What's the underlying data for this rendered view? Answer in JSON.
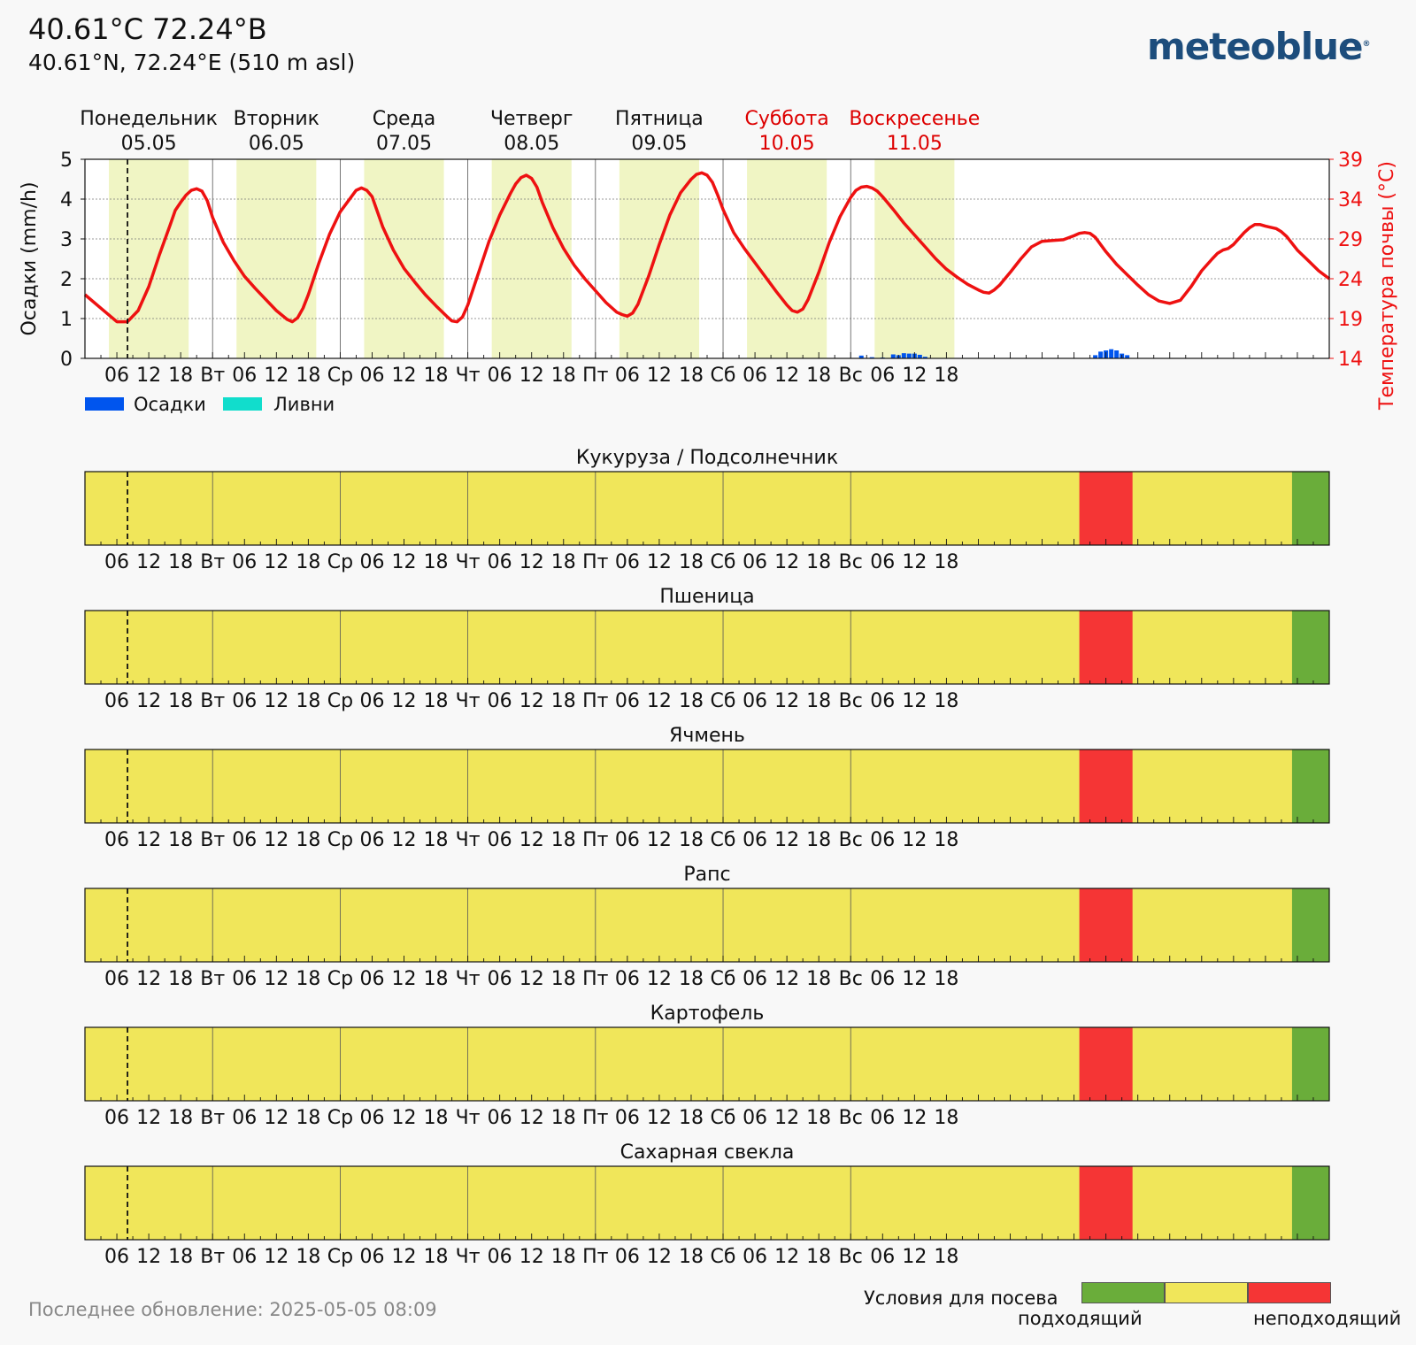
{
  "header": {
    "title": "40.61°C 72.24°В",
    "subtitle": "40.61°N, 72.24°E (510 m asl)",
    "logo": "meteoblue",
    "logo_mark": "®"
  },
  "days": [
    {
      "name": "Понедельник",
      "date": "05.05",
      "weekend": false
    },
    {
      "name": "Вторник",
      "date": "06.05",
      "weekend": false
    },
    {
      "name": "Среда",
      "date": "07.05",
      "weekend": false
    },
    {
      "name": "Четверг",
      "date": "08.05",
      "weekend": false
    },
    {
      "name": "Пятница",
      "date": "09.05",
      "weekend": false
    },
    {
      "name": "Суббота",
      "date": "10.05",
      "weekend": true
    },
    {
      "name": "Воскресенье",
      "date": "11.05",
      "weekend": true
    }
  ],
  "hour_ticks": [
    "06",
    "12",
    "18"
  ],
  "day_abbr": [
    "Вт",
    "Ср",
    "Чт",
    "Пт",
    "Сб",
    "Вс"
  ],
  "legend": {
    "precip": "Осадки",
    "showers": "Ливни"
  },
  "chart_data": {
    "type": "line",
    "x_unit": "hours from 05.05 00:00",
    "precip_axis": {
      "label": "Осадки (mm/h)",
      "ticks": [
        0,
        1,
        2,
        3,
        4,
        5
      ],
      "range": [
        0,
        5
      ]
    },
    "temp_axis": {
      "label": "Температура почвы (°C)",
      "ticks": [
        14,
        19,
        24,
        29,
        34,
        39
      ],
      "range": [
        14,
        39
      ]
    },
    "grid": true,
    "now_hour": 8,
    "soil_temperature": [
      [
        0,
        22
      ],
      [
        3,
        20.3
      ],
      [
        6,
        18.6
      ],
      [
        8,
        18.6
      ],
      [
        10,
        20
      ],
      [
        12,
        23
      ],
      [
        14,
        27
      ],
      [
        16,
        30.7
      ],
      [
        17,
        32.6
      ],
      [
        18,
        33.6
      ],
      [
        19,
        34.5
      ],
      [
        20,
        35.1
      ],
      [
        21,
        35.3
      ],
      [
        22,
        35
      ],
      [
        23,
        33.8
      ],
      [
        24,
        31.7
      ],
      [
        26,
        28.6
      ],
      [
        28,
        26.3
      ],
      [
        30,
        24.3
      ],
      [
        32,
        22.8
      ],
      [
        34,
        21.4
      ],
      [
        36,
        20
      ],
      [
        38,
        18.9
      ],
      [
        39,
        18.6
      ],
      [
        40,
        19.1
      ],
      [
        41,
        20.3
      ],
      [
        42,
        22
      ],
      [
        44,
        26
      ],
      [
        46,
        29.6
      ],
      [
        48,
        32.4
      ],
      [
        50,
        34.2
      ],
      [
        51,
        35.1
      ],
      [
        52,
        35.4
      ],
      [
        53,
        35.1
      ],
      [
        54,
        34.3
      ],
      [
        56,
        30.5
      ],
      [
        58,
        27.6
      ],
      [
        60,
        25.3
      ],
      [
        62,
        23.6
      ],
      [
        64,
        22
      ],
      [
        66,
        20.6
      ],
      [
        68,
        19.3
      ],
      [
        69,
        18.7
      ],
      [
        70,
        18.6
      ],
      [
        71,
        19.2
      ],
      [
        72,
        20.7
      ],
      [
        74,
        24.7
      ],
      [
        76,
        28.7
      ],
      [
        78,
        32
      ],
      [
        80,
        34.7
      ],
      [
        81,
        35.9
      ],
      [
        82,
        36.7
      ],
      [
        83,
        37
      ],
      [
        84,
        36.6
      ],
      [
        85,
        35.5
      ],
      [
        86,
        33.6
      ],
      [
        88,
        30.4
      ],
      [
        90,
        27.8
      ],
      [
        92,
        25.7
      ],
      [
        94,
        24
      ],
      [
        96,
        22.5
      ],
      [
        98,
        21
      ],
      [
        100,
        19.8
      ],
      [
        101,
        19.5
      ],
      [
        102,
        19.3
      ],
      [
        103,
        19.7
      ],
      [
        104,
        20.8
      ],
      [
        106,
        24.3
      ],
      [
        108,
        28.3
      ],
      [
        110,
        32
      ],
      [
        112,
        34.8
      ],
      [
        114,
        36.5
      ],
      [
        115,
        37.1
      ],
      [
        116,
        37.3
      ],
      [
        117,
        37
      ],
      [
        118,
        36.1
      ],
      [
        119,
        34.5
      ],
      [
        120,
        32.7
      ],
      [
        122,
        29.8
      ],
      [
        124,
        27.8
      ],
      [
        126,
        26
      ],
      [
        128,
        24.2
      ],
      [
        130,
        22.4
      ],
      [
        132,
        20.7
      ],
      [
        133,
        20
      ],
      [
        134,
        19.8
      ],
      [
        135,
        20.2
      ],
      [
        136,
        21.4
      ],
      [
        138,
        24.8
      ],
      [
        140,
        28.6
      ],
      [
        142,
        31.8
      ],
      [
        144,
        34.2
      ],
      [
        145,
        35.1
      ],
      [
        146,
        35.5
      ],
      [
        147,
        35.6
      ],
      [
        148,
        35.4
      ],
      [
        149,
        35
      ],
      [
        150,
        34.3
      ],
      [
        152,
        32.7
      ],
      [
        154,
        31
      ],
      [
        156,
        29.5
      ],
      [
        158,
        28
      ],
      [
        160,
        26.5
      ],
      [
        162,
        25.2
      ],
      [
        164,
        24.2
      ],
      [
        166,
        23.3
      ],
      [
        168,
        22.6
      ],
      [
        169,
        22.3
      ],
      [
        170,
        22.2
      ],
      [
        171,
        22.6
      ],
      [
        172,
        23.2
      ],
      [
        174,
        24.8
      ],
      [
        176,
        26.5
      ],
      [
        178,
        28
      ],
      [
        180,
        28.7
      ],
      [
        182,
        28.8
      ],
      [
        184,
        28.9
      ],
      [
        186,
        29.4
      ],
      [
        187,
        29.7
      ],
      [
        188,
        29.8
      ],
      [
        189,
        29.7
      ],
      [
        190,
        29.2
      ],
      [
        192,
        27.4
      ],
      [
        194,
        25.8
      ],
      [
        196,
        24.5
      ],
      [
        198,
        23.2
      ],
      [
        200,
        22
      ],
      [
        202,
        21.2
      ],
      [
        204,
        20.9
      ],
      [
        206,
        21.3
      ],
      [
        208,
        23
      ],
      [
        210,
        25
      ],
      [
        212,
        26.5
      ],
      [
        213,
        27.2
      ],
      [
        214,
        27.6
      ],
      [
        215,
        27.8
      ],
      [
        216,
        28.3
      ],
      [
        218,
        29.8
      ],
      [
        219,
        30.4
      ],
      [
        220,
        30.8
      ],
      [
        221,
        30.8
      ],
      [
        222,
        30.6
      ],
      [
        224,
        30.3
      ],
      [
        225,
        29.9
      ],
      [
        226,
        29.3
      ],
      [
        228,
        27.6
      ],
      [
        230,
        26.3
      ],
      [
        232,
        25
      ],
      [
        234,
        24
      ]
    ],
    "precipitation": [
      [
        146,
        0.07
      ],
      [
        148,
        0.03
      ],
      [
        150,
        0.02
      ],
      [
        152,
        0.1
      ],
      [
        153,
        0.08
      ],
      [
        154,
        0.13
      ],
      [
        155,
        0.12
      ],
      [
        156,
        0.12
      ],
      [
        157,
        0.09
      ],
      [
        158,
        0.04
      ],
      [
        190,
        0.08
      ],
      [
        191,
        0.17
      ],
      [
        192,
        0.2
      ],
      [
        193,
        0.23
      ],
      [
        194,
        0.2
      ],
      [
        195,
        0.12
      ],
      [
        196,
        0.08
      ]
    ],
    "showers": []
  },
  "crops": [
    {
      "title": "Кукуруза / Подсолнечник",
      "red": [
        187,
        197
      ],
      "green": [
        227,
        234
      ]
    },
    {
      "title": "Пшеница",
      "red": [
        187,
        197
      ],
      "green": [
        227,
        234
      ]
    },
    {
      "title": "Ячмень",
      "red": [
        187,
        197
      ],
      "green": [
        227,
        234
      ]
    },
    {
      "title": "Рапс",
      "red": [
        187,
        197
      ],
      "green": [
        227,
        234
      ]
    },
    {
      "title": "Картофель",
      "red": [
        187,
        197
      ],
      "green": [
        227,
        234
      ]
    },
    {
      "title": "Сахарная свекла",
      "red": [
        187,
        197
      ],
      "green": [
        227,
        234
      ]
    }
  ],
  "footer": {
    "updated": "Последнее обновление: 2025-05-05 08:09",
    "legend_title": "Условия для посева",
    "good": "подходящий",
    "bad": "неподходящий"
  },
  "colors": {
    "daylight": "#f0f5c4",
    "temp_line": "#ee1111",
    "precip": "#0055ee",
    "showers": "#11ddcc",
    "crop_neutral": "#f0e65a",
    "crop_bad": "#f53535",
    "crop_good": "#6aad3a",
    "weekend": "#dd0000"
  }
}
